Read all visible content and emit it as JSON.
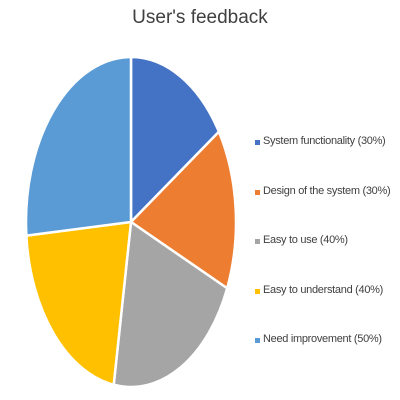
{
  "chart_data": {
    "type": "pie",
    "title": "User's feedback",
    "categories": [
      "System functionality (30%)",
      "Design of the system (30%)",
      "Easy to use (40%)",
      "Easy to understand (40%)",
      "Need improvement (50%)"
    ],
    "values": [
      30,
      30,
      40,
      40,
      50
    ],
    "colors": [
      "#4472C4",
      "#ED7D31",
      "#A5A5A5",
      "#FFC000",
      "#5B9BD5"
    ],
    "legend_position": "right",
    "slice_border_color": "#FFFFFF"
  }
}
